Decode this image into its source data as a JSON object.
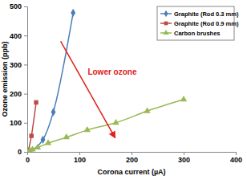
{
  "chart_data": {
    "type": "line",
    "x_label": "Corona current (µA)",
    "y_label": "Ozone emission (ppb)",
    "annotation": "Lower ozone",
    "xlim": [
      0,
      400
    ],
    "xticks": [
      0,
      100,
      200,
      300,
      400
    ],
    "ylim": [
      0,
      500
    ],
    "yticks": [
      0,
      100,
      200,
      300,
      400,
      500
    ],
    "grid": false,
    "legend": "top-right",
    "series": [
      {
        "name": "Graphite (Rod 0.3 mm)",
        "color": "#4a7ebb",
        "marker": "diamond",
        "x": [
          2,
          30,
          50,
          88
        ],
        "values": [
          2,
          42,
          137,
          478
        ]
      },
      {
        "name": "Graphite (Rod 0.9 mm)",
        "color": "#be4b48",
        "marker": "square",
        "x": [
          2,
          8,
          17
        ],
        "values": [
          3,
          55,
          170
        ]
      },
      {
        "name": "Carbon brushes",
        "color": "#98b954",
        "marker": "triangle",
        "x": [
          0,
          5,
          10,
          20,
          40,
          75,
          115,
          170,
          230,
          300
        ],
        "values": [
          0,
          5,
          8,
          15,
          30,
          50,
          75,
          100,
          140,
          180
        ]
      }
    ]
  }
}
